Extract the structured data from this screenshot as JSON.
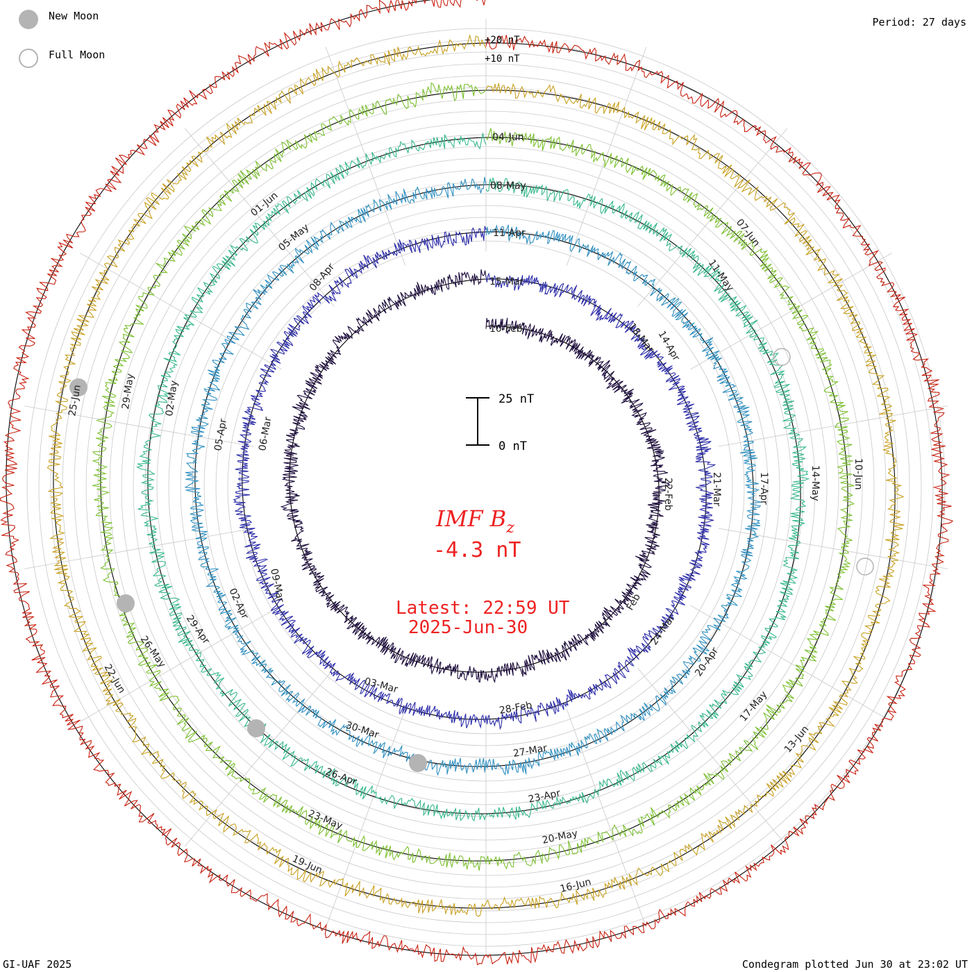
{
  "legend": {
    "new_moon_label": "New Moon",
    "full_moon_label": "Full Moon",
    "new_moon_color": "#b4b4b4",
    "full_moon_color": "#b4b4b4"
  },
  "header": {
    "period": "Period: 27 days"
  },
  "footer": {
    "credit": "GI-UAF 2025",
    "plotted": "Condegram plotted Jun 30 at 23:02 UT"
  },
  "chart_data": {
    "type": "line",
    "subtype": "condegram-spiral",
    "title": "IMF B",
    "title_subscript": "z",
    "current_value": "-4.3 nT",
    "latest_label": "Latest: 22:59 UT",
    "latest_date": "2025-Jun-30",
    "period_days": 27,
    "ring_labels": [
      "+20 nT",
      "+10 nT"
    ],
    "scale_bar": {
      "top_label": "25 nT",
      "bottom_label": "0 nT"
    },
    "series": [
      {
        "name": "rotation-1",
        "color": "#1a0a3a",
        "start_label": "10-Feb"
      },
      {
        "name": "rotation-2",
        "color": "#2a2aa8",
        "start_label": "15-Mar"
      },
      {
        "name": "rotation-3",
        "color": "#2e8fc0",
        "start_label": "11-Apr"
      },
      {
        "name": "rotation-4",
        "color": "#36b88c",
        "start_label": "08-May"
      },
      {
        "name": "rotation-5",
        "color": "#7cc030",
        "start_label": "04-Jun"
      },
      {
        "name": "rotation-6",
        "color": "#c8a020",
        "start_label": "04-Jun"
      },
      {
        "name": "rotation-7",
        "color": "#c82010",
        "start_label": ""
      }
    ],
    "date_labels": [
      "10-Feb",
      "15-Mar",
      "11-Apr",
      "08-May",
      "04-Jun",
      "18-Mar",
      "14-Apr",
      "11-May",
      "07-Jun",
      "21-Mar",
      "17-Apr",
      "14-May",
      "10-Jun",
      "22-Feb",
      "24-Mar",
      "20-Apr",
      "17-May",
      "13-Jun",
      "Feb",
      "28-Feb",
      "27-Mar",
      "23-Apr",
      "20-May",
      "16-Jun",
      "03-Mar",
      "30-Mar",
      "26-Apr",
      "23-May",
      "19-Jun",
      "09-Mar",
      "02-Apr",
      "29-Apr",
      "26-May",
      "22-Jun",
      "06-Mar",
      "05-Apr",
      "02-May",
      "29-May",
      "25-Jun",
      "08-Apr",
      "05-May",
      "01-Jun"
    ]
  }
}
